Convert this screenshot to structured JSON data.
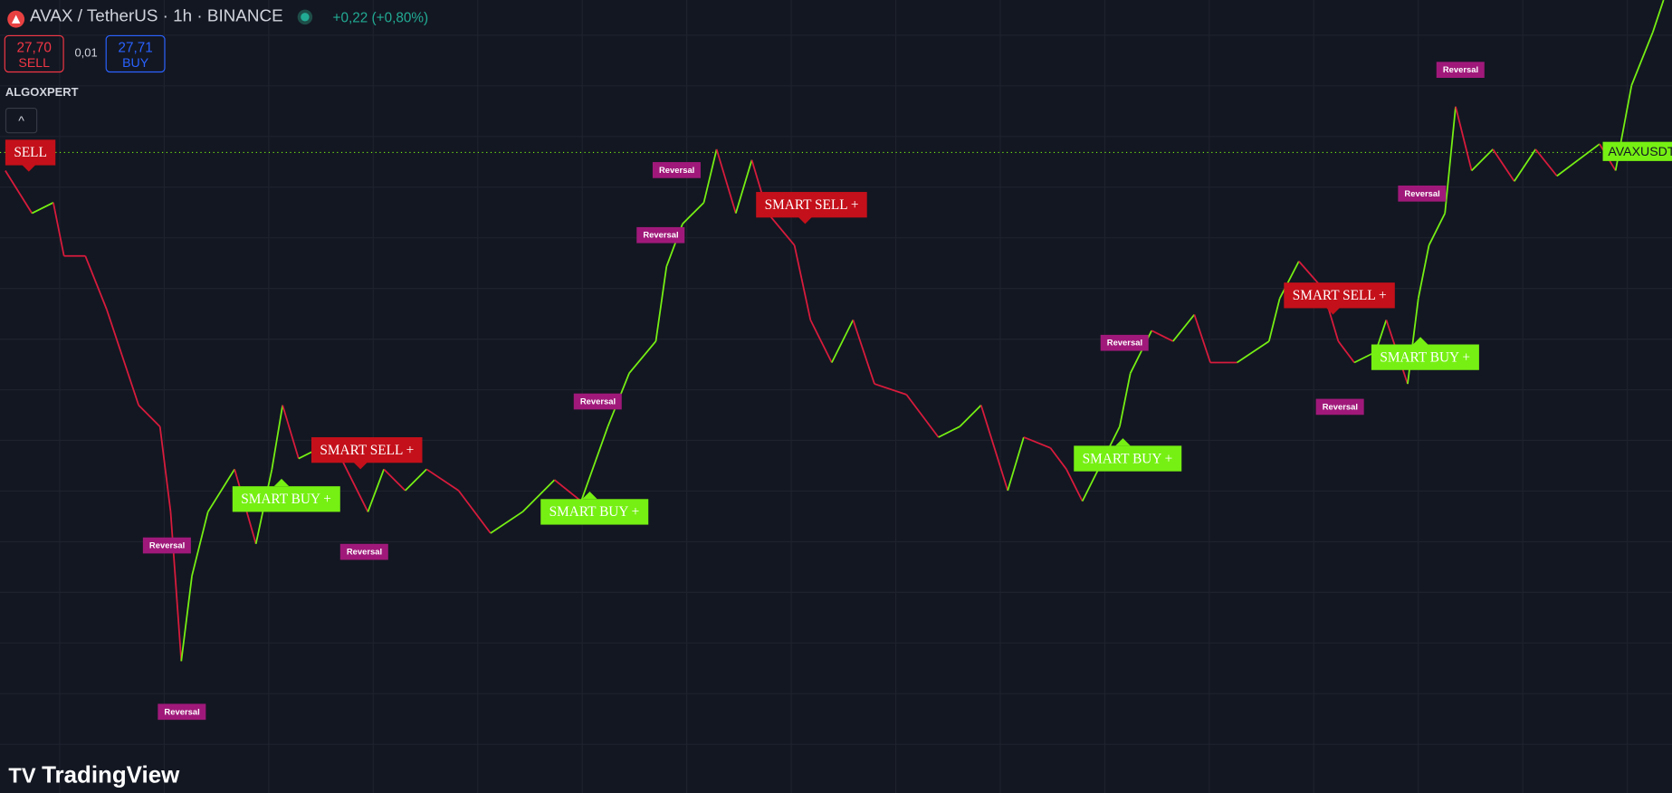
{
  "header": {
    "symbol": "AVAX / TetherUS · 1h · BINANCE",
    "change": "+0,22 (+0,80%)"
  },
  "order_panel": {
    "sell_price": "27,70",
    "sell_label": "SELL",
    "spread": "0,01",
    "buy_price": "27,71",
    "buy_label": "BUY"
  },
  "indicator": {
    "name": "ALGOXPERT"
  },
  "price_line_label": "AVAXUSDT",
  "signals": [
    {
      "kind": "sell",
      "label": "SELL"
    },
    {
      "kind": "sell",
      "label": "SMART SELL +"
    },
    {
      "kind": "sell",
      "label": "SMART SELL +"
    },
    {
      "kind": "sell",
      "label": "SMART SELL +"
    },
    {
      "kind": "buy",
      "label": "SMART BUY +"
    },
    {
      "kind": "buy",
      "label": "SMART BUY +"
    },
    {
      "kind": "buy",
      "label": "SMART BUY +"
    },
    {
      "kind": "buy",
      "label": "SMART BUY +"
    }
  ],
  "reversals": [
    "Reversal",
    "Reversal",
    "Reversal",
    "Reversal",
    "Reversal",
    "Reversal",
    "Reversal",
    "Reversal",
    "Reversal",
    "Reversal"
  ],
  "logo": "TradingView"
}
